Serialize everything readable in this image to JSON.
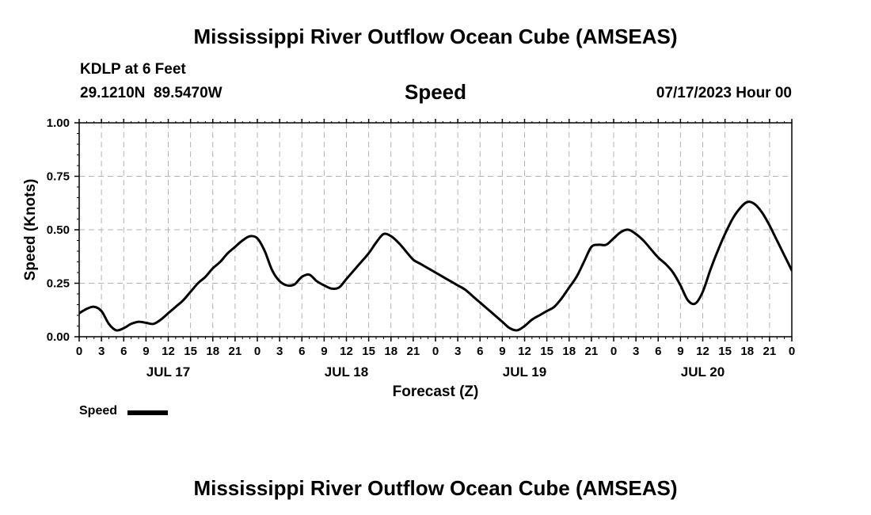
{
  "page": {
    "title": "Mississippi River Outflow Ocean Cube (AMSEAS)",
    "footer_title": "Mississippi River Outflow Ocean Cube (AMSEAS)",
    "station": "KDLP at 6 Feet",
    "coords": "29.1210N  89.5470W",
    "subtitle": "Speed",
    "date": "07/17/2023 Hour 00",
    "legend_label": "Speed"
  },
  "chart_data": {
    "type": "line",
    "title": "Speed",
    "xlabel": "Forecast (Z)",
    "ylabel": "Speed (Knots)",
    "xlim": [
      0,
      96
    ],
    "ylim": [
      0,
      1
    ],
    "yticks": [
      "0.00",
      "0.25",
      "0.50",
      "0.75",
      "1.00"
    ],
    "xtick_labels": [
      "0",
      "3",
      "6",
      "9",
      "12",
      "15",
      "18",
      "21",
      "0",
      "3",
      "6",
      "9",
      "12",
      "15",
      "18",
      "21",
      "0",
      "3",
      "6",
      "9",
      "12",
      "15",
      "18",
      "21",
      "0",
      "3",
      "6",
      "9",
      "12",
      "15",
      "18",
      "21",
      "0"
    ],
    "date_labels": [
      {
        "label": "JUL 17",
        "hour": 12
      },
      {
        "label": "JUL 18",
        "hour": 36
      },
      {
        "label": "JUL 19",
        "hour": 60
      },
      {
        "label": "JUL 20",
        "hour": 84
      }
    ],
    "grid": true,
    "legend": "bottom-left",
    "series": [
      {
        "name": "Speed",
        "color": "#000000",
        "x": [
          0,
          1,
          2,
          3,
          4,
          5,
          6,
          7,
          8,
          9,
          10,
          11,
          12,
          13,
          14,
          15,
          16,
          17,
          18,
          19,
          20,
          21,
          22,
          23,
          24,
          25,
          26,
          27,
          28,
          29,
          30,
          31,
          32,
          33,
          34,
          35,
          36,
          37,
          38,
          39,
          40,
          41,
          42,
          43,
          44,
          45,
          46,
          47,
          48,
          49,
          50,
          51,
          52,
          53,
          54,
          55,
          56,
          57,
          58,
          59,
          60,
          61,
          62,
          63,
          64,
          65,
          66,
          67,
          68,
          69,
          70,
          71,
          72,
          73,
          74,
          75,
          76,
          77,
          78,
          79,
          80,
          81,
          82,
          83,
          84,
          85,
          86,
          87,
          88,
          89,
          90,
          91,
          92,
          93,
          94,
          95,
          96
        ],
        "values": [
          0.11,
          0.13,
          0.14,
          0.12,
          0.06,
          0.03,
          0.04,
          0.06,
          0.07,
          0.065,
          0.06,
          0.08,
          0.11,
          0.14,
          0.17,
          0.21,
          0.25,
          0.28,
          0.32,
          0.35,
          0.39,
          0.42,
          0.45,
          0.47,
          0.46,
          0.4,
          0.31,
          0.26,
          0.24,
          0.245,
          0.28,
          0.29,
          0.26,
          0.24,
          0.225,
          0.23,
          0.27,
          0.31,
          0.35,
          0.39,
          0.44,
          0.48,
          0.47,
          0.44,
          0.4,
          0.36,
          0.34,
          0.32,
          0.3,
          0.28,
          0.26,
          0.24,
          0.22,
          0.19,
          0.16,
          0.13,
          0.1,
          0.07,
          0.04,
          0.03,
          0.05,
          0.08,
          0.1,
          0.12,
          0.14,
          0.18,
          0.23,
          0.28,
          0.35,
          0.42,
          0.43,
          0.43,
          0.46,
          0.49,
          0.5,
          0.48,
          0.45,
          0.41,
          0.37,
          0.34,
          0.3,
          0.24,
          0.17,
          0.155,
          0.21,
          0.31,
          0.4,
          0.48,
          0.55,
          0.6,
          0.63,
          0.62,
          0.58,
          0.52,
          0.45,
          0.38,
          0.31
        ]
      }
    ]
  }
}
